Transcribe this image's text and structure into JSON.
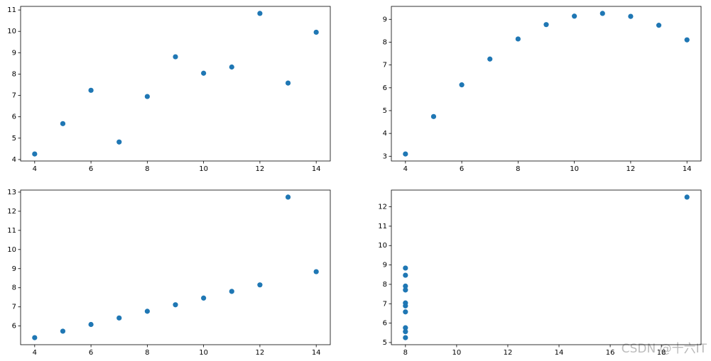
{
  "chart_data": [
    {
      "type": "scatter",
      "color": "#1f77b4",
      "x": [
        10,
        8,
        13,
        9,
        11,
        14,
        6,
        4,
        12,
        7,
        5
      ],
      "y": [
        8.04,
        6.95,
        7.58,
        8.81,
        8.33,
        9.96,
        7.24,
        4.26,
        10.84,
        4.82,
        5.68
      ],
      "xlim": [
        3.5,
        14.5
      ],
      "ylim": [
        3.931,
        11.169
      ],
      "xticks": [
        4,
        6,
        8,
        10,
        12,
        14
      ],
      "yticks": [
        4,
        5,
        6,
        7,
        8,
        9,
        10,
        11
      ]
    },
    {
      "type": "scatter",
      "color": "#1f77b4",
      "x": [
        10,
        8,
        13,
        9,
        11,
        14,
        6,
        4,
        12,
        7,
        5
      ],
      "y": [
        9.14,
        8.14,
        8.74,
        8.77,
        9.26,
        8.1,
        6.13,
        3.1,
        9.13,
        7.26,
        4.74
      ],
      "xlim": [
        3.5,
        14.5
      ],
      "ylim": [
        2.792,
        9.568
      ],
      "xticks": [
        4,
        6,
        8,
        10,
        12,
        14
      ],
      "yticks": [
        3,
        4,
        5,
        6,
        7,
        8,
        9
      ]
    },
    {
      "type": "scatter",
      "color": "#1f77b4",
      "x": [
        10,
        8,
        13,
        9,
        11,
        14,
        6,
        4,
        12,
        7,
        5
      ],
      "y": [
        7.46,
        6.77,
        12.74,
        7.11,
        7.81,
        8.84,
        6.08,
        5.39,
        8.15,
        6.42,
        5.73
      ],
      "xlim": [
        3.5,
        14.5
      ],
      "ylim": [
        5.0225,
        13.1075
      ],
      "xticks": [
        4,
        6,
        8,
        10,
        12,
        14
      ],
      "yticks": [
        6,
        7,
        8,
        9,
        10,
        11,
        12,
        13
      ]
    },
    {
      "type": "scatter",
      "color": "#1f77b4",
      "x": [
        8,
        8,
        8,
        8,
        8,
        8,
        8,
        19,
        8,
        8,
        8
      ],
      "y": [
        6.58,
        5.76,
        7.71,
        8.84,
        8.47,
        7.04,
        5.25,
        12.5,
        5.56,
        7.91,
        6.89
      ],
      "xlim": [
        7.45,
        19.55
      ],
      "ylim": [
        4.8875,
        12.8625
      ],
      "xticks": [
        8,
        10,
        12,
        14,
        16,
        18
      ],
      "yticks": [
        5,
        6,
        7,
        8,
        9,
        10,
        11,
        12
      ]
    }
  ],
  "watermark": "CSDN @十六IT"
}
